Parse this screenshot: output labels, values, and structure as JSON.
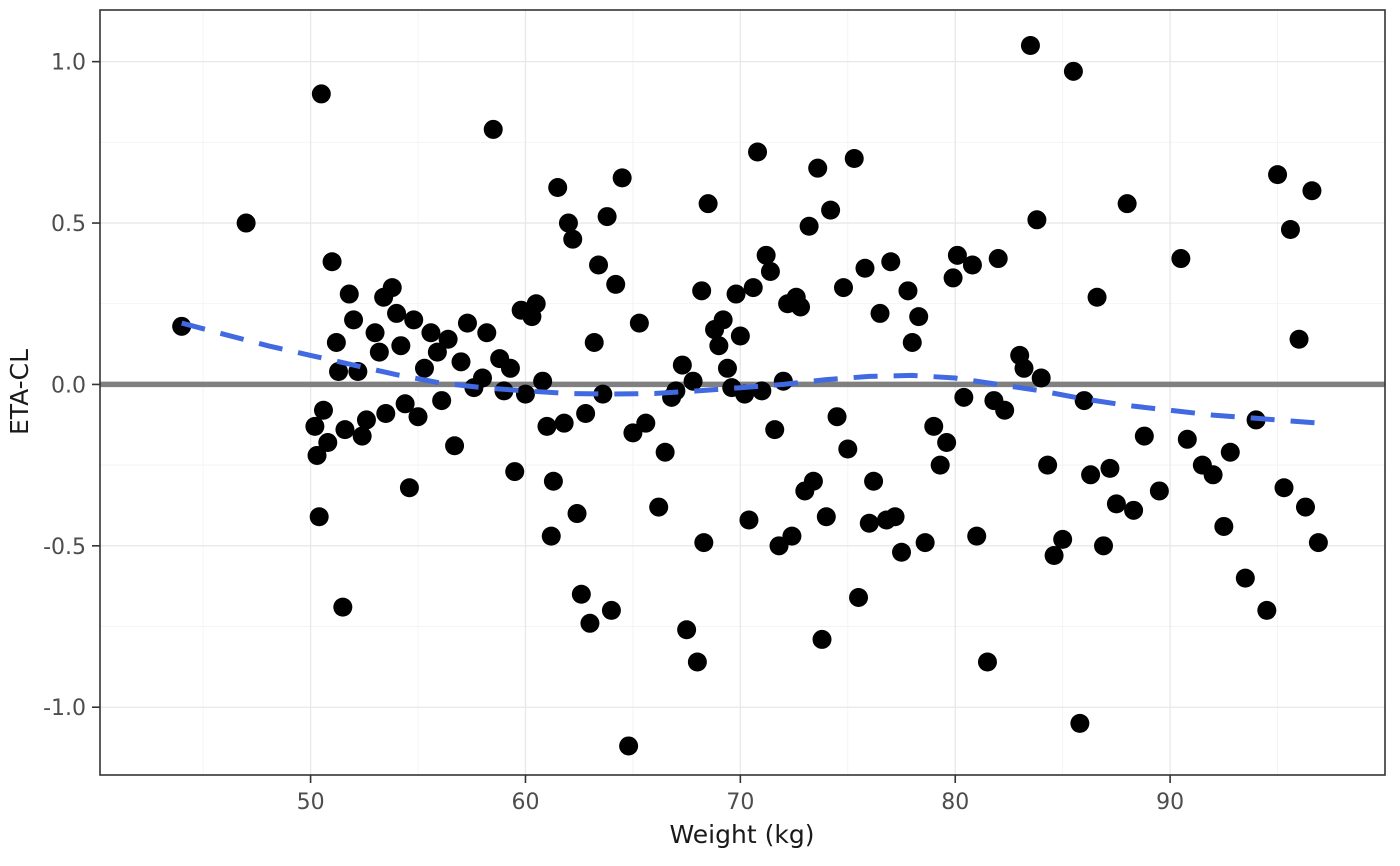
{
  "figure": {
    "background": "#ffffff",
    "panel_background": "#ffffff",
    "panel_border_color": "#333333",
    "major_grid_color": "#e8e8e8",
    "minor_grid_color": "#f3f3f3",
    "tick_mark_color": "#333333",
    "tick_label_color": "#4d4d4d",
    "axis_title_color": "#1a1a1a"
  },
  "chart_data": {
    "type": "scatter",
    "title": "",
    "xlabel": "Weight (kg)",
    "ylabel": "ETA-CL",
    "xlim": [
      40.2,
      100.0
    ],
    "ylim": [
      -1.21,
      1.16
    ],
    "grid": true,
    "legend_position": "none",
    "x_ticks": {
      "values": [
        50,
        60,
        70,
        80,
        90
      ],
      "labels": [
        "50",
        "60",
        "70",
        "80",
        "90"
      ]
    },
    "x_minor_ticks": [
      45,
      55,
      65,
      75,
      85,
      95
    ],
    "y_ticks": {
      "values": [
        -1.0,
        -0.5,
        0.0,
        0.5,
        1.0
      ],
      "labels": [
        "-1.0",
        "-0.5",
        "0.0",
        "0.5",
        "1.0"
      ]
    },
    "y_minor_ticks": [
      -0.75,
      -0.25,
      0.25,
      0.75
    ],
    "reference_line": {
      "y": 0,
      "color": "#808080",
      "width": 5.5,
      "style": "solid"
    },
    "points_style": {
      "color": "#000000",
      "radius": 9.5
    },
    "smooth": {
      "name": "loess-smooth",
      "style": "dashed",
      "color": "#4169E1",
      "width": 5,
      "points": [
        [
          44,
          0.19
        ],
        [
          46,
          0.155
        ],
        [
          48,
          0.12
        ],
        [
          50,
          0.09
        ],
        [
          52,
          0.06
        ],
        [
          54,
          0.03
        ],
        [
          56,
          0.005
        ],
        [
          58,
          -0.01
        ],
        [
          60,
          -0.02
        ],
        [
          62,
          -0.028
        ],
        [
          64,
          -0.03
        ],
        [
          66,
          -0.028
        ],
        [
          68,
          -0.02
        ],
        [
          70,
          -0.01
        ],
        [
          72,
          0.0
        ],
        [
          74,
          0.015
        ],
        [
          76,
          0.025
        ],
        [
          78,
          0.028
        ],
        [
          80,
          0.02
        ],
        [
          82,
          0.0
        ],
        [
          84,
          -0.02
        ],
        [
          86,
          -0.045
        ],
        [
          88,
          -0.065
        ],
        [
          90,
          -0.08
        ],
        [
          92,
          -0.095
        ],
        [
          94,
          -0.105
        ],
        [
          96,
          -0.115
        ],
        [
          97,
          -0.12
        ]
      ]
    },
    "points": [
      [
        44.0,
        0.18
      ],
      [
        47.0,
        0.5
      ],
      [
        50.2,
        -0.13
      ],
      [
        50.3,
        -0.22
      ],
      [
        50.4,
        -0.41
      ],
      [
        50.5,
        0.9
      ],
      [
        50.6,
        -0.08
      ],
      [
        50.8,
        -0.18
      ],
      [
        51.0,
        0.38
      ],
      [
        51.2,
        0.13
      ],
      [
        51.3,
        0.04
      ],
      [
        51.5,
        -0.69
      ],
      [
        51.6,
        -0.14
      ],
      [
        51.8,
        0.28
      ],
      [
        52.0,
        0.2
      ],
      [
        52.2,
        0.04
      ],
      [
        52.4,
        -0.16
      ],
      [
        52.6,
        -0.11
      ],
      [
        53.0,
        0.16
      ],
      [
        53.2,
        0.1
      ],
      [
        53.4,
        0.27
      ],
      [
        53.5,
        -0.09
      ],
      [
        53.8,
        0.3
      ],
      [
        54.0,
        0.22
      ],
      [
        54.2,
        0.12
      ],
      [
        54.4,
        -0.06
      ],
      [
        54.6,
        -0.32
      ],
      [
        54.8,
        0.2
      ],
      [
        55.0,
        -0.1
      ],
      [
        55.3,
        0.05
      ],
      [
        55.6,
        0.16
      ],
      [
        55.9,
        0.1
      ],
      [
        56.1,
        -0.05
      ],
      [
        56.4,
        0.14
      ],
      [
        56.7,
        -0.19
      ],
      [
        57.0,
        0.07
      ],
      [
        57.3,
        0.19
      ],
      [
        57.6,
        -0.01
      ],
      [
        58.0,
        0.02
      ],
      [
        58.2,
        0.16
      ],
      [
        58.5,
        0.79
      ],
      [
        58.8,
        0.08
      ],
      [
        59.0,
        -0.02
      ],
      [
        59.3,
        0.05
      ],
      [
        59.5,
        -0.27
      ],
      [
        59.8,
        0.23
      ],
      [
        60.0,
        -0.03
      ],
      [
        60.3,
        0.21
      ],
      [
        60.5,
        0.25
      ],
      [
        60.8,
        0.01
      ],
      [
        61.0,
        -0.13
      ],
      [
        61.2,
        -0.47
      ],
      [
        61.3,
        -0.3
      ],
      [
        61.5,
        0.61
      ],
      [
        61.8,
        -0.12
      ],
      [
        62.0,
        0.5
      ],
      [
        62.2,
        0.45
      ],
      [
        62.4,
        -0.4
      ],
      [
        62.6,
        -0.65
      ],
      [
        62.8,
        -0.09
      ],
      [
        63.0,
        -0.74
      ],
      [
        63.2,
        0.13
      ],
      [
        63.4,
        0.37
      ],
      [
        63.6,
        -0.03
      ],
      [
        63.8,
        0.52
      ],
      [
        64.0,
        -0.7
      ],
      [
        64.2,
        0.31
      ],
      [
        64.5,
        0.64
      ],
      [
        64.8,
        -1.12
      ],
      [
        65.0,
        -0.15
      ],
      [
        65.3,
        0.19
      ],
      [
        65.6,
        -0.12
      ],
      [
        66.2,
        -0.38
      ],
      [
        66.5,
        -0.21
      ],
      [
        66.8,
        -0.04
      ],
      [
        67.0,
        -0.02
      ],
      [
        67.3,
        0.06
      ],
      [
        67.5,
        -0.76
      ],
      [
        67.8,
        0.01
      ],
      [
        68.0,
        -0.86
      ],
      [
        68.2,
        0.29
      ],
      [
        68.3,
        -0.49
      ],
      [
        68.5,
        0.56
      ],
      [
        68.8,
        0.17
      ],
      [
        69.0,
        0.12
      ],
      [
        69.2,
        0.2
      ],
      [
        69.4,
        0.05
      ],
      [
        69.6,
        -0.01
      ],
      [
        69.8,
        0.28
      ],
      [
        70.0,
        0.15
      ],
      [
        70.2,
        -0.03
      ],
      [
        70.4,
        -0.42
      ],
      [
        70.6,
        0.3
      ],
      [
        70.8,
        0.72
      ],
      [
        71.0,
        -0.02
      ],
      [
        71.2,
        0.4
      ],
      [
        71.4,
        0.35
      ],
      [
        71.6,
        -0.14
      ],
      [
        71.8,
        -0.5
      ],
      [
        72.0,
        0.01
      ],
      [
        72.2,
        0.25
      ],
      [
        72.4,
        -0.47
      ],
      [
        72.6,
        0.27
      ],
      [
        72.8,
        0.24
      ],
      [
        73.0,
        -0.33
      ],
      [
        73.2,
        0.49
      ],
      [
        73.4,
        -0.3
      ],
      [
        73.6,
        0.67
      ],
      [
        73.8,
        -0.79
      ],
      [
        74.0,
        -0.41
      ],
      [
        74.2,
        0.54
      ],
      [
        74.5,
        -0.1
      ],
      [
        74.8,
        0.3
      ],
      [
        75.0,
        -0.2
      ],
      [
        75.3,
        0.7
      ],
      [
        75.5,
        -0.66
      ],
      [
        75.8,
        0.36
      ],
      [
        76.0,
        -0.43
      ],
      [
        76.2,
        -0.3
      ],
      [
        76.5,
        0.22
      ],
      [
        76.8,
        -0.42
      ],
      [
        77.0,
        0.38
      ],
      [
        77.2,
        -0.41
      ],
      [
        77.5,
        -0.52
      ],
      [
        77.8,
        0.29
      ],
      [
        78.0,
        0.13
      ],
      [
        78.3,
        0.21
      ],
      [
        78.6,
        -0.49
      ],
      [
        79.0,
        -0.13
      ],
      [
        79.3,
        -0.25
      ],
      [
        79.6,
        -0.18
      ],
      [
        79.9,
        0.33
      ],
      [
        80.1,
        0.4
      ],
      [
        80.4,
        -0.04
      ],
      [
        80.8,
        0.37
      ],
      [
        81.0,
        -0.47
      ],
      [
        81.5,
        -0.86
      ],
      [
        81.8,
        -0.05
      ],
      [
        82.0,
        0.39
      ],
      [
        82.3,
        -0.08
      ],
      [
        83.0,
        0.09
      ],
      [
        83.2,
        0.05
      ],
      [
        83.5,
        1.05
      ],
      [
        83.8,
        0.51
      ],
      [
        84.0,
        0.02
      ],
      [
        84.3,
        -0.25
      ],
      [
        84.6,
        -0.53
      ],
      [
        85.0,
        -0.48
      ],
      [
        85.5,
        0.97
      ],
      [
        85.8,
        -1.05
      ],
      [
        86.0,
        -0.05
      ],
      [
        86.3,
        -0.28
      ],
      [
        86.6,
        0.27
      ],
      [
        86.9,
        -0.5
      ],
      [
        87.2,
        -0.26
      ],
      [
        87.5,
        -0.37
      ],
      [
        88.0,
        0.56
      ],
      [
        88.3,
        -0.39
      ],
      [
        88.8,
        -0.16
      ],
      [
        89.5,
        -0.33
      ],
      [
        90.5,
        0.39
      ],
      [
        90.8,
        -0.17
      ],
      [
        91.5,
        -0.25
      ],
      [
        92.0,
        -0.28
      ],
      [
        92.5,
        -0.44
      ],
      [
        92.8,
        -0.21
      ],
      [
        93.5,
        -0.6
      ],
      [
        94.0,
        -0.11
      ],
      [
        94.5,
        -0.7
      ],
      [
        95.0,
        0.65
      ],
      [
        95.3,
        -0.32
      ],
      [
        95.6,
        0.48
      ],
      [
        96.0,
        0.14
      ],
      [
        96.3,
        -0.38
      ],
      [
        96.6,
        0.6
      ],
      [
        96.9,
        -0.49
      ]
    ]
  }
}
